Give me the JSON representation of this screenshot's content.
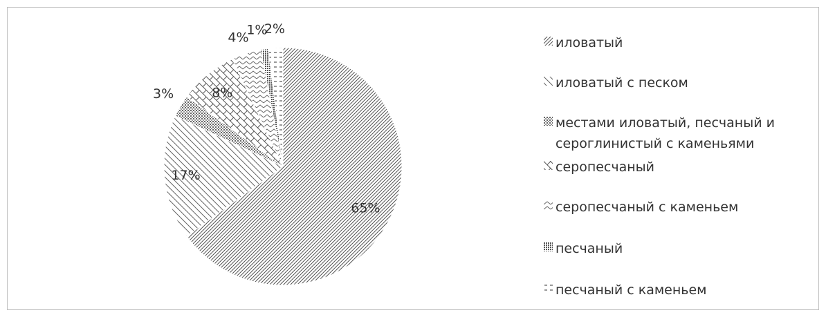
{
  "chart_data": {
    "type": "pie",
    "title": "",
    "legend_position": "right",
    "slices": [
      {
        "label": "иловатый",
        "value": 65,
        "value_label": "65%",
        "pattern": "diag-right"
      },
      {
        "label": "иловатый с песком",
        "value": 17,
        "value_label": "17%",
        "pattern": "diag-left"
      },
      {
        "label": "местами иловатый, песчаный и сероглинистый с каменьями",
        "value": 3,
        "value_label": "3%",
        "pattern": "dots"
      },
      {
        "label": "серопесчаный",
        "value": 8,
        "value_label": "8%",
        "pattern": "brick"
      },
      {
        "label": "серопесчаный с каменьем",
        "value": 4,
        "value_label": "4%",
        "pattern": "zigzag"
      },
      {
        "label": "песчаный",
        "value": 1,
        "value_label": "1%",
        "pattern": "checker"
      },
      {
        "label": "песчаный с каменьем",
        "value": 2,
        "value_label": "2%",
        "pattern": "dash"
      }
    ]
  }
}
